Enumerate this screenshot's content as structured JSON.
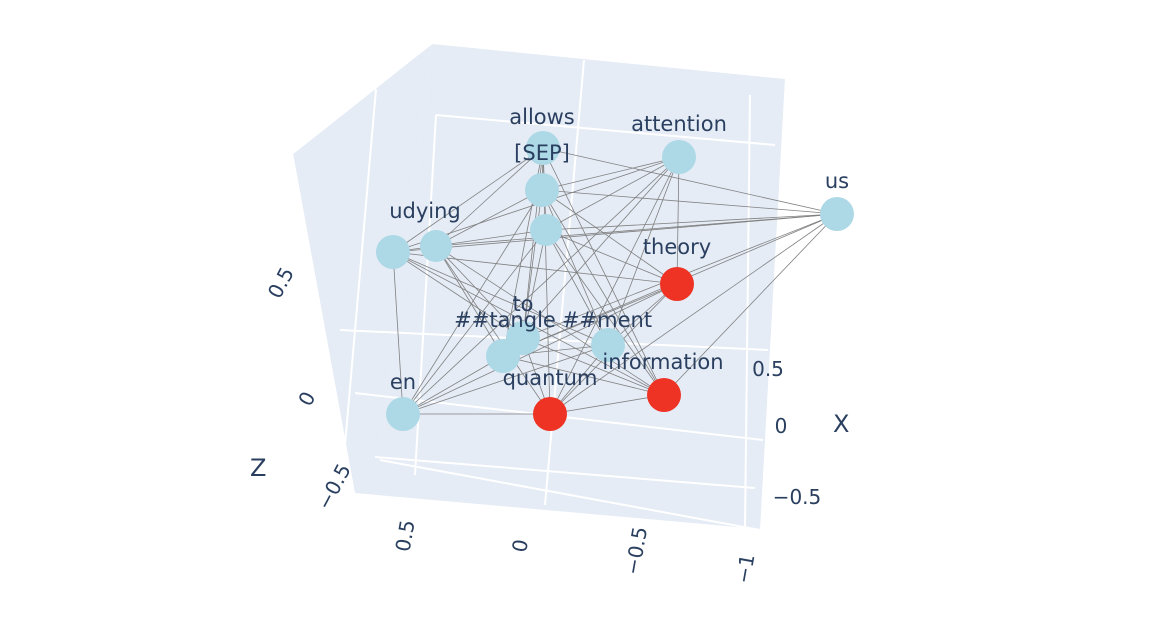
{
  "chart_data": {
    "type": "scatter3d",
    "title": "",
    "axes": {
      "x": {
        "title": "X",
        "ticks": [
          "0.5",
          "0",
          "−0.5"
        ]
      },
      "y": {
        "title": "",
        "ticks": [
          "0.5",
          "0",
          "−0.5",
          "−1"
        ]
      },
      "z": {
        "title": "Z",
        "ticks": [
          "0.5",
          "0",
          "−0.5"
        ]
      }
    },
    "colors": {
      "default_node": "#add8e6",
      "highlight_node": "#ee3324",
      "edge": "#808080",
      "pane": "#e5ecf6",
      "grid": "#ffffff"
    },
    "nodes": [
      {
        "label": "allows",
        "highlighted": false
      },
      {
        "label": "[SEP]",
        "highlighted": false
      },
      {
        "label": "attention",
        "highlighted": false
      },
      {
        "label": "us",
        "highlighted": false
      },
      {
        "label": "udying",
        "highlighted": false
      },
      {
        "label": "theory",
        "highlighted": true
      },
      {
        "label": "to",
        "highlighted": false
      },
      {
        "label": "##tangle",
        "highlighted": false
      },
      {
        "label": "##ment",
        "highlighted": false
      },
      {
        "label": "information",
        "highlighted": true
      },
      {
        "label": "quantum",
        "highlighted": true
      },
      {
        "label": "en",
        "highlighted": false
      }
    ]
  }
}
